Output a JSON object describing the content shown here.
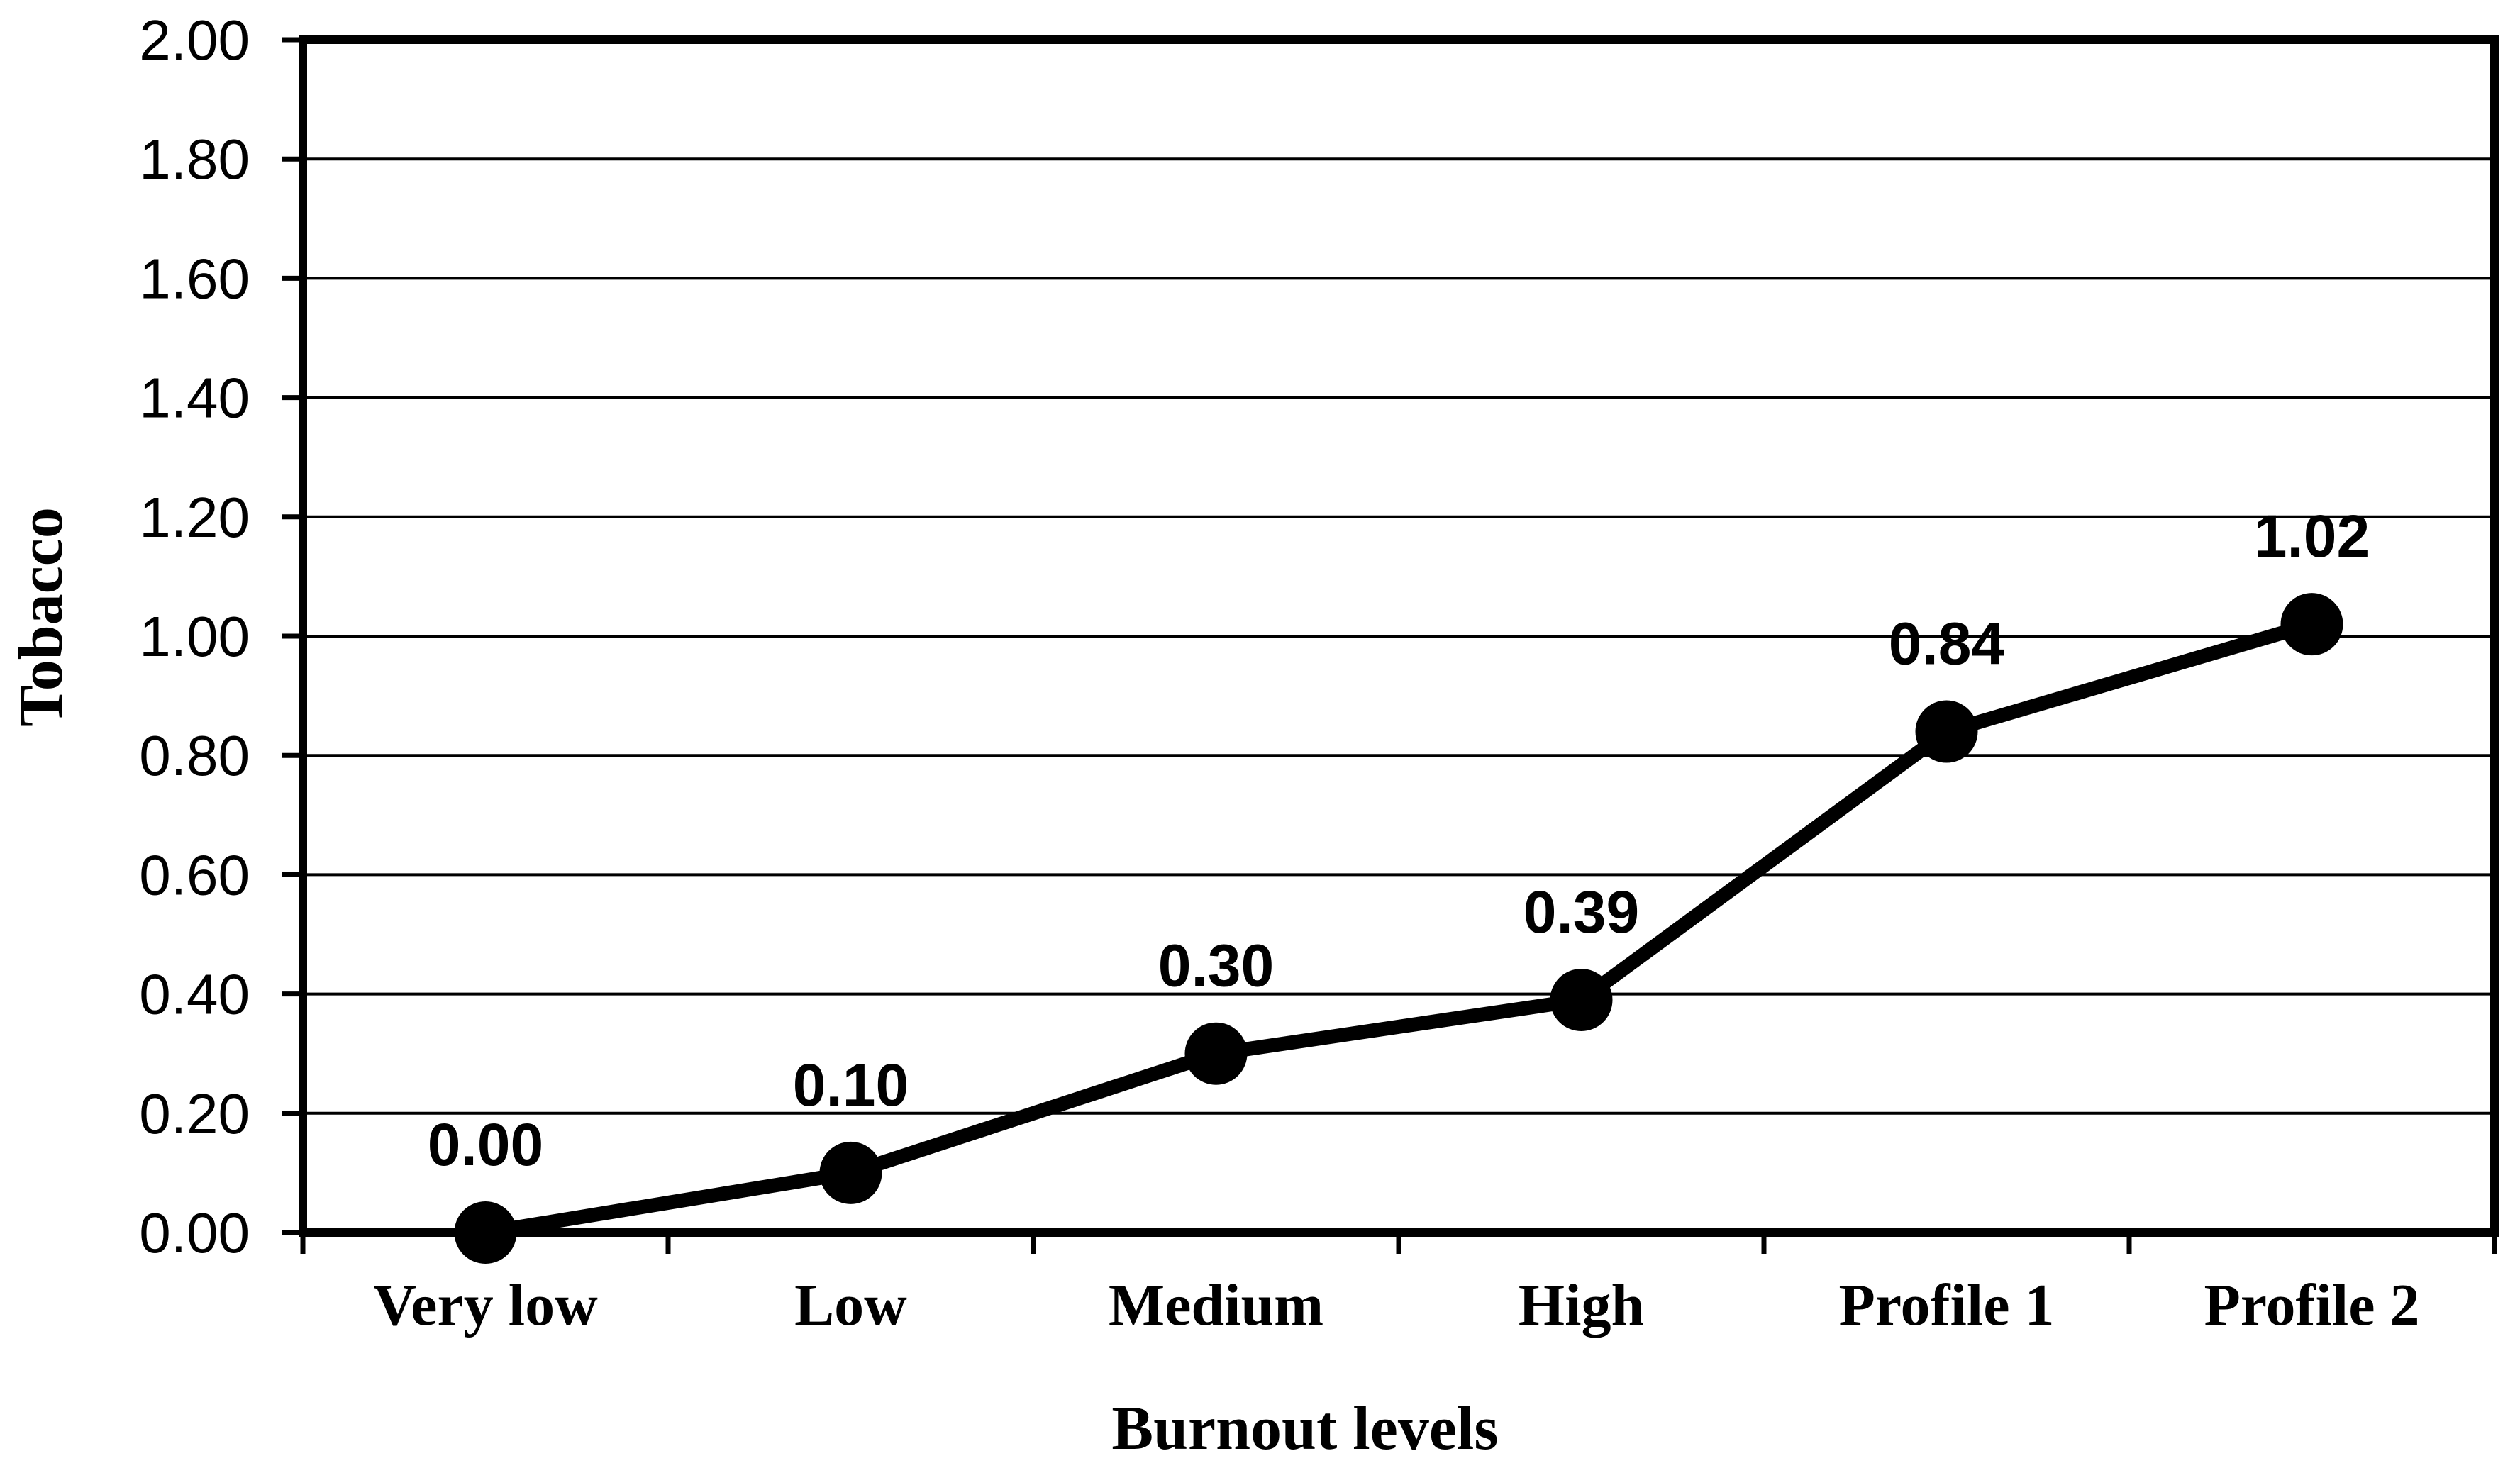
{
  "chart_data": {
    "type": "line",
    "title": "",
    "categories": [
      "Very low",
      "Low",
      "Medium",
      "High",
      "Profile 1",
      "Profile 2"
    ],
    "series": [
      {
        "name": "Tobacco",
        "values": [
          0.0,
          0.1,
          0.3,
          0.39,
          0.84,
          1.02
        ],
        "data_labels": [
          "0.00",
          "0.10",
          "0.30",
          "0.39",
          "0.84",
          "1.02"
        ],
        "color": "#000000",
        "marker": "filled-circle"
      }
    ],
    "xlabel": "Burnout levels",
    "ylabel": "Tobacco",
    "ylim": [
      0.0,
      2.0
    ],
    "ytick_step": 0.2,
    "ytick_labels": [
      "0.00",
      "0.20",
      "0.40",
      "0.60",
      "0.80",
      "1.00",
      "1.20",
      "1.40",
      "1.60",
      "1.80",
      "2.00"
    ],
    "grid": "horizontal",
    "legend_position": "none",
    "plot_frame": true,
    "foreground_color": "#000000",
    "background_color": "#ffffff"
  }
}
